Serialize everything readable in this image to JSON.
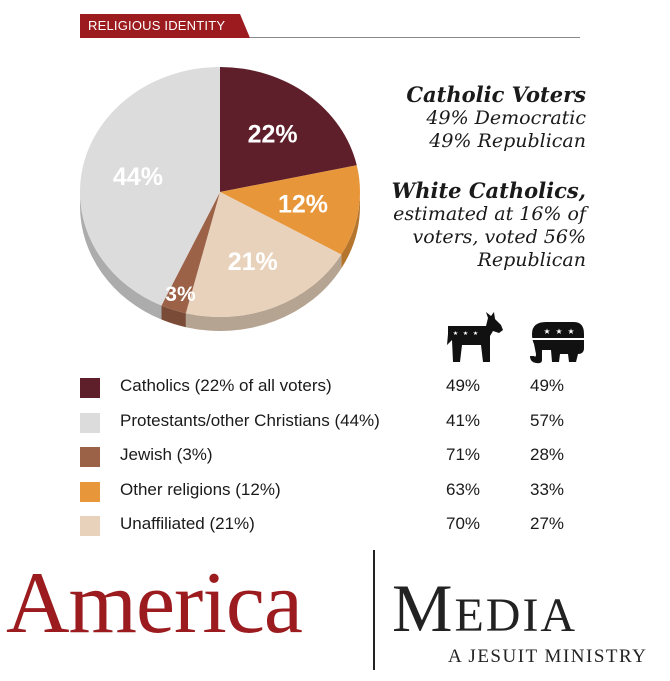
{
  "section_tag": "RELIGIOUS IDENTITY",
  "summary": {
    "catholic_heading": "Catholic Voters",
    "catholic_dem": "49% Democratic",
    "catholic_rep": "49% Republican",
    "white_heading": "White Catholics,",
    "white_line1": "estimated at 16% of",
    "white_line2": "voters, voted 56%",
    "white_line3": "Republican"
  },
  "icons": {
    "democrat": "donkey-icon",
    "republican": "elephant-icon"
  },
  "chart_data": {
    "type": "pie",
    "title": "",
    "slices": [
      {
        "label": "Catholics",
        "value": 22,
        "display": "22%",
        "color": "#5e1f2b"
      },
      {
        "label": "Other religions",
        "value": 12,
        "display": "12%",
        "color": "#e8963a"
      },
      {
        "label": "Unaffiliated",
        "value": 21,
        "display": "21%",
        "color": "#e9d2bb"
      },
      {
        "label": "Jewish",
        "value": 3,
        "display": "3%",
        "color": "#9c6247"
      },
      {
        "label": "Protestants/other Christians",
        "value": 44,
        "display": "44%",
        "color": "#dcdcdc"
      }
    ],
    "table": {
      "rows": [
        {
          "name": "Catholics (22% of all voters)",
          "color": "#5e1f2b",
          "dem": "49%",
          "rep": "49%"
        },
        {
          "name": "Protestants/other Christians (44%)",
          "color": "#dcdcdc",
          "dem": "41%",
          "rep": "57%"
        },
        {
          "name": "Jewish (3%)",
          "color": "#9c6247",
          "dem": "71%",
          "rep": "28%"
        },
        {
          "name": "Other religions (12%)",
          "color": "#e8963a",
          "dem": "63%",
          "rep": "33%"
        },
        {
          "name": "Unaffiliated (21%)",
          "color": "#e9d2bb",
          "dem": "70%",
          "rep": "27%"
        }
      ]
    }
  },
  "brand": {
    "name": "America",
    "media": "Media",
    "tagline": "A JESUIT MINISTRY"
  }
}
